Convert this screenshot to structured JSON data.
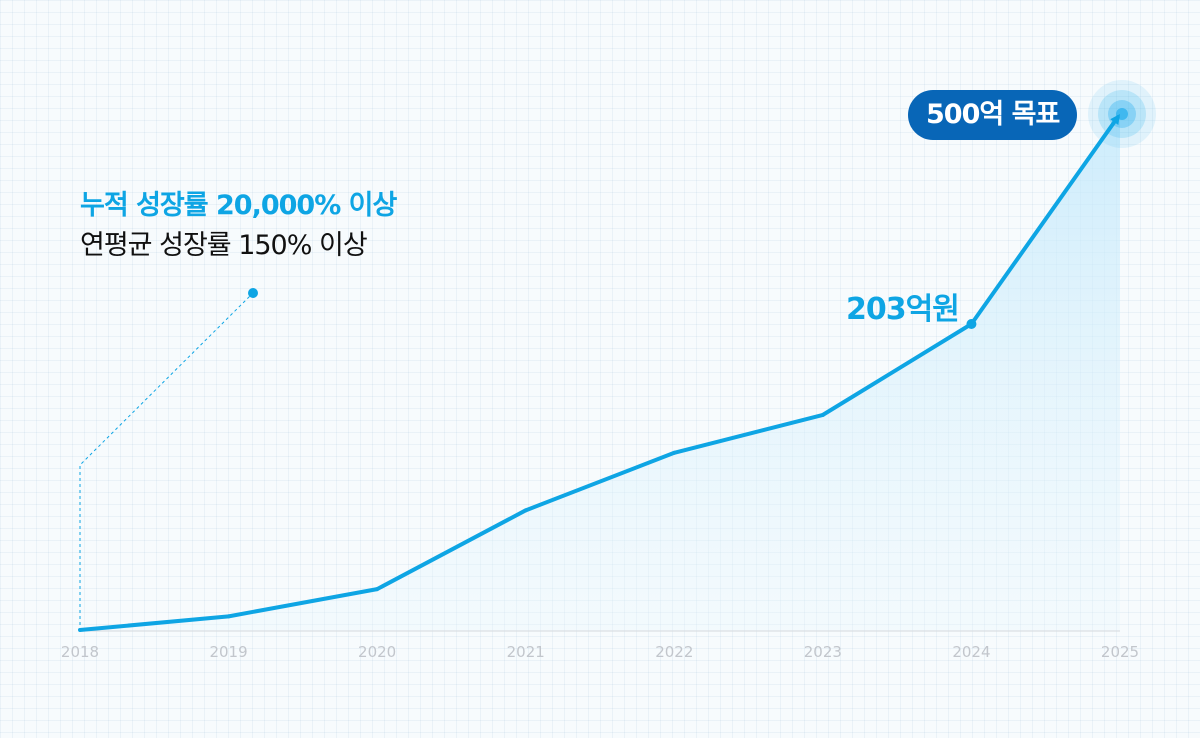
{
  "headline": {
    "line1": "누적 성장률 20,000% 이상",
    "line2": "연평균 성장률 150% 이상"
  },
  "colors": {
    "line": "#0ea5e4",
    "target_pill": "#0866b7",
    "text_dark": "#111111",
    "tick": "#c2c6cc"
  },
  "chart_data": {
    "type": "area",
    "x": [
      "2018",
      "2019",
      "2020",
      "2021",
      "2022",
      "2023",
      "2024",
      "2025"
    ],
    "series": [
      {
        "values": [
          1,
          10,
          28,
          80,
          118,
          143,
          203,
          500
        ]
      }
    ],
    "annotations": {
      "value_label": "203억원",
      "target_label": "500억 목표"
    },
    "xlabel": "",
    "ylabel": "",
    "grid": true,
    "legend": "none"
  }
}
